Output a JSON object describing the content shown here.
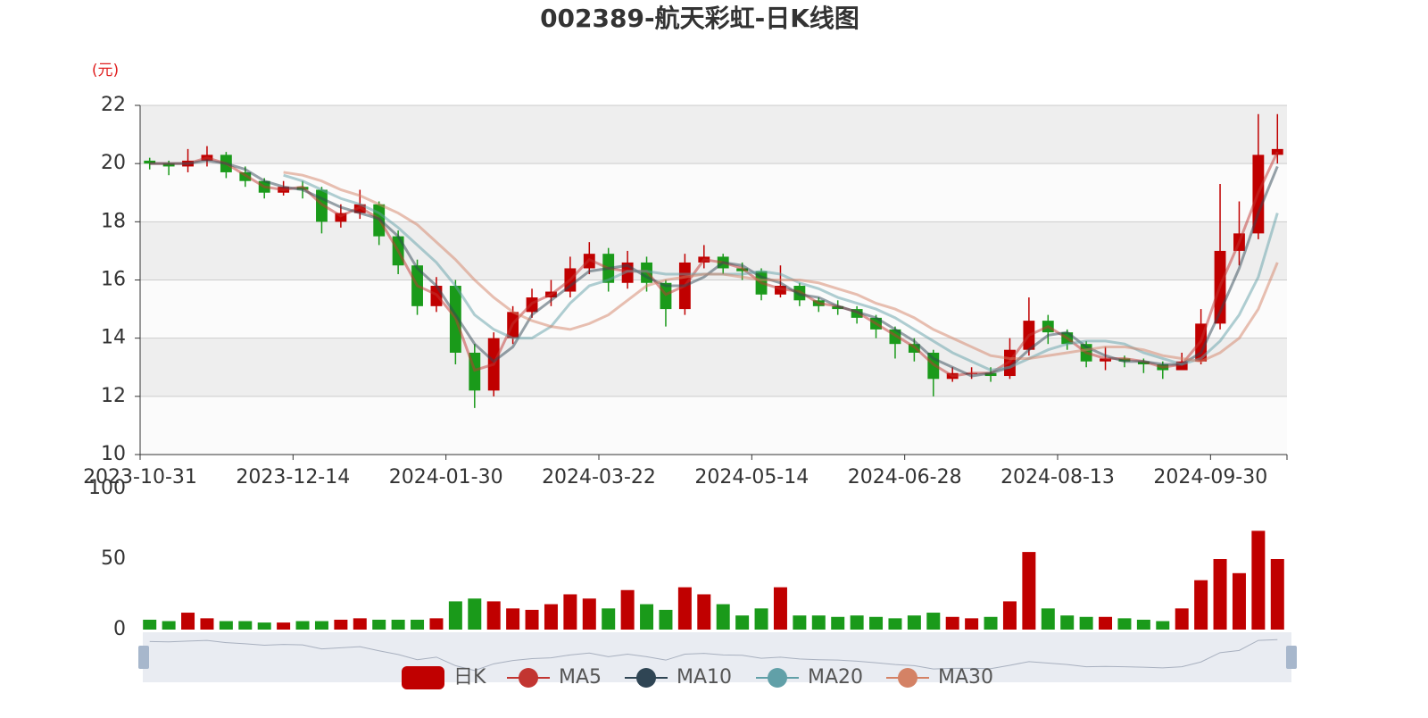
{
  "chart_data": {
    "type": "candlestick",
    "title": "002389-航天彩虹-日K线图",
    "y_label": "(元)",
    "name": "日K",
    "up_color": "#c00000",
    "down_color": "#1a9a1a",
    "grid": true,
    "ylim": [
      10,
      22
    ],
    "yticks": [
      10,
      12,
      14,
      16,
      18,
      20,
      22
    ],
    "categories": [
      "2023-10-31",
      null,
      null,
      null,
      null,
      null,
      null,
      null,
      "2023-12-14",
      null,
      null,
      null,
      null,
      null,
      null,
      null,
      "2024-01-30",
      null,
      null,
      null,
      null,
      null,
      null,
      null,
      "2024-03-22",
      null,
      null,
      null,
      null,
      null,
      null,
      null,
      "2024-05-14",
      null,
      null,
      null,
      null,
      null,
      null,
      null,
      "2024-06-28",
      null,
      null,
      null,
      null,
      null,
      null,
      null,
      "2024-08-13",
      null,
      null,
      null,
      null,
      null,
      null,
      null,
      "2024-09-30",
      null,
      null,
      null
    ],
    "ohlc": [
      [
        20.1,
        20.0,
        19.8,
        20.2
      ],
      [
        20.0,
        19.9,
        19.6,
        20.1
      ],
      [
        19.9,
        20.1,
        19.7,
        20.5
      ],
      [
        20.1,
        20.3,
        19.9,
        20.6
      ],
      [
        20.3,
        19.7,
        19.5,
        20.4
      ],
      [
        19.7,
        19.4,
        19.2,
        19.9
      ],
      [
        19.4,
        19.0,
        18.8,
        19.5
      ],
      [
        19.0,
        19.2,
        18.9,
        19.4
      ],
      [
        19.2,
        19.1,
        18.8,
        19.4
      ],
      [
        19.1,
        18.0,
        17.6,
        19.2
      ],
      [
        18.0,
        18.3,
        17.8,
        18.6
      ],
      [
        18.3,
        18.6,
        18.1,
        19.1
      ],
      [
        18.6,
        17.5,
        17.2,
        18.7
      ],
      [
        17.5,
        16.5,
        16.2,
        17.7
      ],
      [
        16.5,
        15.1,
        14.8,
        16.7
      ],
      [
        15.1,
        15.8,
        14.9,
        16.1
      ],
      [
        15.8,
        13.5,
        13.1,
        16.0
      ],
      [
        13.5,
        12.2,
        11.6,
        13.8
      ],
      [
        12.2,
        14.0,
        12.0,
        14.2
      ],
      [
        14.0,
        14.9,
        13.8,
        15.1
      ],
      [
        14.9,
        15.4,
        14.7,
        15.7
      ],
      [
        15.4,
        15.6,
        15.1,
        16.0
      ],
      [
        15.6,
        16.4,
        15.4,
        16.8
      ],
      [
        16.4,
        16.9,
        16.2,
        17.3
      ],
      [
        16.9,
        15.9,
        15.6,
        17.1
      ],
      [
        15.9,
        16.6,
        15.7,
        17.0
      ],
      [
        16.6,
        15.9,
        15.6,
        16.8
      ],
      [
        15.9,
        15.0,
        14.4,
        16.0
      ],
      [
        15.0,
        16.6,
        14.8,
        16.9
      ],
      [
        16.6,
        16.8,
        16.4,
        17.2
      ],
      [
        16.8,
        16.4,
        16.2,
        16.9
      ],
      [
        16.4,
        16.3,
        16.0,
        16.6
      ],
      [
        16.3,
        15.5,
        15.3,
        16.4
      ],
      [
        15.5,
        15.8,
        15.4,
        16.5
      ],
      [
        15.8,
        15.3,
        15.1,
        15.9
      ],
      [
        15.3,
        15.1,
        14.9,
        15.4
      ],
      [
        15.1,
        15.0,
        14.8,
        15.3
      ],
      [
        15.0,
        14.7,
        14.5,
        15.1
      ],
      [
        14.7,
        14.3,
        14.0,
        14.8
      ],
      [
        14.3,
        13.8,
        13.3,
        14.4
      ],
      [
        13.8,
        13.5,
        13.2,
        14.0
      ],
      [
        13.5,
        12.6,
        12.0,
        13.6
      ],
      [
        12.6,
        12.8,
        12.5,
        13.0
      ],
      [
        12.8,
        12.8,
        12.6,
        13.0
      ],
      [
        12.8,
        12.7,
        12.5,
        13.0
      ],
      [
        12.7,
        13.6,
        12.6,
        14.0
      ],
      [
        13.6,
        14.6,
        13.4,
        15.4
      ],
      [
        14.6,
        14.2,
        13.8,
        14.8
      ],
      [
        14.2,
        13.8,
        13.6,
        14.3
      ],
      [
        13.8,
        13.2,
        13.0,
        13.9
      ],
      [
        13.2,
        13.3,
        12.9,
        13.7
      ],
      [
        13.3,
        13.2,
        13.0,
        13.4
      ],
      [
        13.2,
        13.1,
        12.8,
        13.3
      ],
      [
        13.1,
        12.9,
        12.6,
        13.2
      ],
      [
        12.9,
        13.2,
        12.9,
        13.5
      ],
      [
        13.2,
        14.5,
        13.1,
        15.0
      ],
      [
        14.5,
        17.0,
        14.3,
        19.3
      ],
      [
        17.0,
        17.6,
        16.5,
        18.7
      ],
      [
        17.6,
        20.3,
        17.4,
        21.7
      ],
      [
        20.3,
        20.5,
        20.0,
        21.7
      ]
    ],
    "series": [
      {
        "name": "MA5",
        "color": "#c23531",
        "values": [
          20.0,
          20.0,
          20.0,
          20.2,
          20.0,
          19.6,
          19.2,
          19.1,
          19.2,
          18.6,
          18.2,
          18.5,
          18.1,
          17.0,
          15.8,
          15.5,
          14.7,
          12.9,
          13.1,
          14.5,
          15.2,
          15.5,
          16.0,
          16.7,
          16.4,
          16.3,
          16.3,
          15.5,
          15.8,
          16.7,
          16.6,
          16.4,
          15.9,
          15.7,
          15.6,
          15.2,
          15.1,
          14.9,
          14.5,
          14.1,
          13.7,
          13.1,
          12.7,
          12.8,
          12.8,
          13.2,
          14.1,
          14.4,
          14.0,
          13.5,
          13.3,
          13.3,
          13.2,
          13.0,
          13.1,
          13.9,
          15.8,
          17.3,
          19.0,
          20.4
        ]
      },
      {
        "name": "MA10",
        "color": "#2f4554",
        "values": [
          20.0,
          20.0,
          20.0,
          20.1,
          20.0,
          19.8,
          19.4,
          19.2,
          19.1,
          18.8,
          18.5,
          18.3,
          18.1,
          17.5,
          16.4,
          15.8,
          14.8,
          13.8,
          13.2,
          13.7,
          14.8,
          15.3,
          15.8,
          16.3,
          16.4,
          16.5,
          16.1,
          15.8,
          15.8,
          16.1,
          16.6,
          16.5,
          16.1,
          15.9,
          15.5,
          15.4,
          15.1,
          14.9,
          14.7,
          14.3,
          13.9,
          13.3,
          13.0,
          12.7,
          12.8,
          13.0,
          13.6,
          14.1,
          14.2,
          13.7,
          13.4,
          13.2,
          13.2,
          13.1,
          13.1,
          13.5,
          14.9,
          16.4,
          18.3,
          19.9
        ]
      },
      {
        "name": "MA20",
        "color": "#61a0a8",
        "values": [
          null,
          null,
          null,
          null,
          null,
          null,
          null,
          19.6,
          19.4,
          19.1,
          18.8,
          18.6,
          18.3,
          17.8,
          17.2,
          16.6,
          15.8,
          14.8,
          14.3,
          14.0,
          14.0,
          14.4,
          15.2,
          15.8,
          16.0,
          16.3,
          16.3,
          16.2,
          16.2,
          16.2,
          16.2,
          16.2,
          16.3,
          16.2,
          15.9,
          15.7,
          15.4,
          15.2,
          15.0,
          14.7,
          14.3,
          13.9,
          13.5,
          13.2,
          12.9,
          13.0,
          13.3,
          13.6,
          13.8,
          13.9,
          13.9,
          13.8,
          13.5,
          13.3,
          13.1,
          13.3,
          13.9,
          14.8,
          16.1,
          18.3
        ]
      },
      {
        "name": "MA30",
        "color": "#d48265",
        "values": [
          null,
          null,
          null,
          null,
          null,
          null,
          null,
          19.7,
          19.6,
          19.4,
          19.1,
          18.9,
          18.6,
          18.3,
          17.9,
          17.3,
          16.7,
          16.0,
          15.4,
          14.9,
          14.6,
          14.4,
          14.3,
          14.5,
          14.8,
          15.3,
          15.8,
          16.0,
          16.1,
          16.2,
          16.2,
          16.1,
          16.0,
          16.0,
          16.0,
          15.9,
          15.7,
          15.5,
          15.2,
          15.0,
          14.7,
          14.3,
          14.0,
          13.7,
          13.4,
          13.3,
          13.3,
          13.4,
          13.5,
          13.6,
          13.7,
          13.7,
          13.6,
          13.4,
          13.3,
          13.2,
          13.5,
          14.0,
          15.0,
          16.6
        ]
      }
    ],
    "volume": {
      "ylim": [
        0,
        100
      ],
      "yticks": [
        0,
        50,
        100
      ],
      "values": [
        7,
        6,
        12,
        8,
        6,
        6,
        5,
        5,
        6,
        6,
        7,
        8,
        7,
        7,
        7,
        8,
        20,
        22,
        20,
        15,
        14,
        18,
        25,
        22,
        15,
        28,
        18,
        14,
        30,
        25,
        18,
        10,
        15,
        30,
        10,
        10,
        9,
        10,
        9,
        8,
        10,
        12,
        9,
        8,
        9,
        20,
        55,
        15,
        10,
        9,
        9,
        8,
        7,
        6,
        15,
        35,
        50,
        40,
        70,
        50
      ]
    }
  }
}
